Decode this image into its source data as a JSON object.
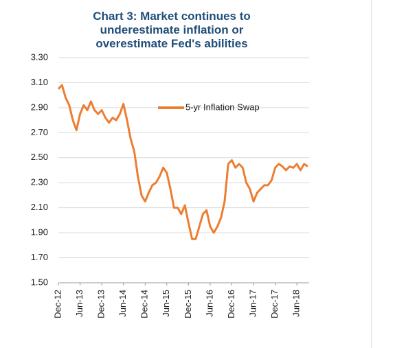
{
  "chart_data": {
    "type": "line",
    "title": "Chart 3: Market continues to underestimate inflation or overestimate Fed's abilities",
    "categories": [
      "Dec-12",
      null,
      null,
      null,
      null,
      null,
      "Jun-13",
      null,
      null,
      null,
      null,
      null,
      "Dec-13",
      null,
      null,
      null,
      null,
      null,
      "Jun-14",
      null,
      null,
      null,
      null,
      null,
      "Dec-14",
      null,
      null,
      null,
      null,
      null,
      "Jun-15",
      null,
      null,
      null,
      null,
      null,
      "Dec-15",
      null,
      null,
      null,
      null,
      null,
      "Jun-16",
      null,
      null,
      null,
      null,
      null,
      "Dec-16",
      null,
      null,
      null,
      null,
      null,
      "Jun-17",
      null,
      null,
      null,
      null,
      null,
      "Dec-17",
      null,
      null,
      null,
      null,
      null,
      "Jun-18",
      null,
      null,
      null
    ],
    "series": [
      {
        "name": "5-yr Inflation Swap",
        "color": "#ED7D31",
        "values": [
          3.05,
          3.08,
          2.98,
          2.92,
          2.8,
          2.72,
          2.85,
          2.92,
          2.88,
          2.95,
          2.88,
          2.85,
          2.88,
          2.82,
          2.78,
          2.82,
          2.8,
          2.85,
          2.93,
          2.8,
          2.65,
          2.55,
          2.35,
          2.2,
          2.15,
          2.22,
          2.28,
          2.3,
          2.35,
          2.42,
          2.38,
          2.25,
          2.1,
          2.1,
          2.05,
          2.12,
          1.98,
          1.85,
          1.85,
          1.95,
          2.05,
          2.08,
          1.95,
          1.9,
          1.95,
          2.02,
          2.15,
          2.45,
          2.48,
          2.42,
          2.45,
          2.42,
          2.3,
          2.25,
          2.15,
          2.22,
          2.25,
          2.28,
          2.28,
          2.32,
          2.42,
          2.45,
          2.43,
          2.4,
          2.43,
          2.42,
          2.45,
          2.4,
          2.45,
          2.43
        ]
      }
    ],
    "ylim": [
      1.5,
      3.3
    ],
    "yticks": [
      {
        "value": 1.5,
        "label": "1.50"
      },
      {
        "value": 1.7,
        "label": "1.70"
      },
      {
        "value": 1.9,
        "label": "1.90"
      },
      {
        "value": 2.1,
        "label": "2.10"
      },
      {
        "value": 2.3,
        "label": "2.30"
      },
      {
        "value": 2.5,
        "label": "2.50"
      },
      {
        "value": 2.7,
        "label": "2.70"
      },
      {
        "value": 2.9,
        "label": "2.90"
      },
      {
        "value": 3.1,
        "label": "3.10"
      },
      {
        "value": 3.3,
        "label": "3.30"
      }
    ],
    "grid": true
  }
}
